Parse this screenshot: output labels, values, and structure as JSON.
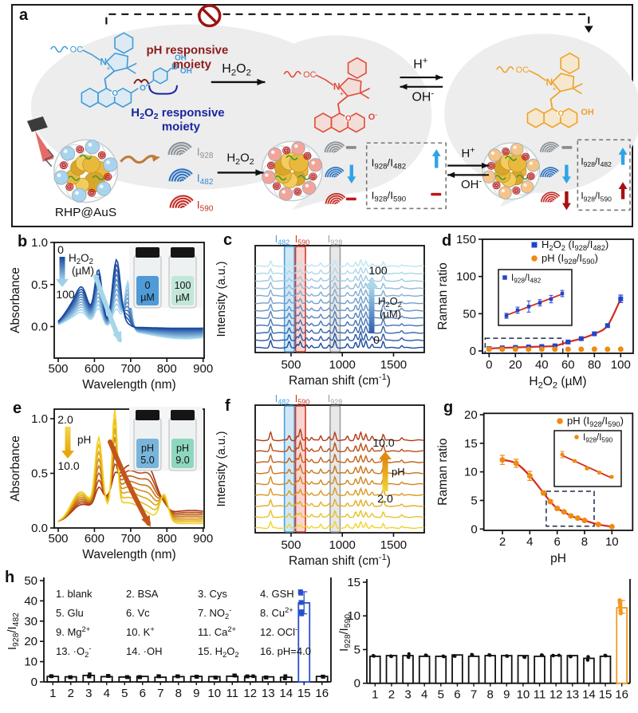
{
  "panel_letters": {
    "a": "a",
    "b": "b",
    "c": "c",
    "d": "d",
    "e": "e",
    "f": "f",
    "g": "g",
    "h": "h"
  },
  "panel_a": {
    "texts": {
      "ph_moiety_line1": "pH responsive",
      "ph_moiety_line2": "moiety",
      "h2o2_moiety_line1": "H_{2}O_{2} responsive",
      "h2o2_moiety_line2": "moiety",
      "reaction_h2o2_top": "H_{2}O_{2}",
      "reaction_h2o2_bottom": "H_{2}O_{2}",
      "h_plus": "H^{+}",
      "oh_minus": "OH^{-}",
      "oc": "OC",
      "n": "N",
      "plus": "+",
      "o": "O",
      "o_minus": "O^{-}",
      "oh": "OH",
      "b_atom": "B",
      "nanoparticle": "RHP@AuS",
      "peak_928": "I_{928}",
      "peak_482": "I_{482}",
      "peak_590": "I_{590}",
      "ratio_482": "I_{928}/I_{482}",
      "ratio_590": "I_{928}/I_{590}"
    },
    "colors": {
      "blue_dye": "#3f9bd8",
      "blue_fill": "#cfe7f7",
      "red_dye": "#e04a38",
      "red_fill": "#f8cfc9",
      "orange_dye": "#efa126",
      "orange_fill": "#fbe3b5",
      "ph_label": "#8b1a1a",
      "h2o2_label": "#18269e",
      "up_blue": "#2fa3e8",
      "up_darkred": "#a51212",
      "minus_red": "#c01818",
      "minus_gray": "#8a8a8a",
      "peak_gray": "#8c9398",
      "peak_blue": "#2f74c0",
      "peak_red": "#c43028",
      "sphere_blue": "#a8d4ee",
      "sphere_pink": "#f2a49b",
      "sphere_orange": "#f6c488",
      "no_entry": "#9c1313",
      "blob": "#ededed"
    }
  },
  "chart_data": [
    {
      "id": "b",
      "type": "line",
      "xlabel": "Wavelength (nm)",
      "ylabel": "Absorbance",
      "xlim": [
        500,
        900
      ],
      "xticks": [
        500,
        600,
        700,
        800,
        900
      ],
      "yticks": [
        0,
        0.5,
        1
      ],
      "ytick_labels": [
        "0.0",
        "0.5",
        "1.0"
      ],
      "n_curves": 11,
      "color_start": "#17479e",
      "color_end": "#aadcf0",
      "arrow_label": {
        "start": "0",
        "analyte": "H_{2}O_{2}",
        "unit": "(µM)",
        "end": "100"
      },
      "components": [
        [
          545,
          38,
          0.26,
          0.1
        ],
        [
          568,
          22,
          0.28,
          0.1
        ],
        [
          611,
          15,
          0.66,
          0.22
        ],
        [
          661,
          16,
          0.8,
          0.24
        ],
        [
          692,
          12,
          0.03,
          0.58
        ],
        [
          850,
          150,
          -0.02,
          -0.145
        ]
      ],
      "base": 0.0,
      "vials": {
        "left": {
          "line1": "0",
          "line2": "µM",
          "color": "#4f9ad8"
        },
        "right": {
          "line1": "100",
          "line2": "µM",
          "color": "#c2e7d9"
        }
      }
    },
    {
      "id": "c",
      "type": "spectra",
      "xlabel": "Raman shift (cm^{-1})",
      "ylabel": "Intensity (a.u.)",
      "xlim": [
        150,
        1800
      ],
      "xticks": [
        500,
        1000,
        1500
      ],
      "n_curves": 12,
      "color_start": "#1b4a9c",
      "color_end": "#bde4f0",
      "bands": [
        {
          "center": 482,
          "label": "I_{482}",
          "color": "#4aa0dc",
          "fill": "rgba(150,205,235,0.45)"
        },
        {
          "center": 590,
          "label": "I_{590}",
          "color": "#d03a2a",
          "fill": "rgba(245,160,150,0.45)"
        },
        {
          "center": 928,
          "label": "I_{928}",
          "color": "#9aa0a4",
          "fill": "rgba(205,205,205,0.45)"
        }
      ],
      "peaks": [
        [
          300,
          0.5
        ],
        [
          482,
          0.45
        ],
        [
          560,
          0.25
        ],
        [
          590,
          0.42
        ],
        [
          650,
          0.2
        ],
        [
          700,
          0.18
        ],
        [
          790,
          0.3
        ],
        [
          870,
          0.18
        ],
        [
          928,
          0.52
        ],
        [
          1050,
          0.26
        ],
        [
          1130,
          0.42
        ],
        [
          1180,
          0.6
        ],
        [
          1230,
          0.48
        ],
        [
          1290,
          0.26
        ],
        [
          1400,
          0.46
        ],
        [
          1580,
          0.16
        ]
      ],
      "modulate": {
        "band": 482,
        "amp_start": 1.15,
        "amp_end": 0.45
      },
      "global_start": 1.2,
      "global_end": 0.85,
      "arrow": {
        "dir": "up",
        "start_label": "0",
        "end_label": "100",
        "analyte": "H_{2}O_{2}",
        "unit": "(µM)",
        "color_start": "#2a5fae",
        "color_end": "#a8d8ea"
      }
    },
    {
      "id": "d",
      "type": "scatter",
      "xlabel": "H_{2}O_{2} (µM)",
      "ylabel": "Raman ratio",
      "xticks": [
        0,
        20,
        40,
        60,
        80,
        100
      ],
      "yticks": [
        0,
        50,
        100,
        150
      ],
      "series": [
        {
          "name": "H_{2}O_{2} (I_{928}/I_{482})",
          "marker": "square",
          "color": "#2244cc",
          "fit_color": "#d42a1a",
          "x": [
            0,
            10,
            20,
            30,
            40,
            50,
            60,
            70,
            80,
            90,
            100
          ],
          "y": [
            3.2,
            4.1,
            4.7,
            5.3,
            5.9,
            6.8,
            12,
            16.5,
            23,
            34,
            70
          ],
          "err": [
            0.6,
            0.6,
            0.7,
            0.7,
            0.8,
            0.9,
            1.3,
            1.5,
            1.6,
            2.2,
            5
          ]
        },
        {
          "name": "pH (I_{928}/I_{590})",
          "marker": "circle",
          "color": "#f08a10",
          "x": [
            0,
            10,
            20,
            30,
            40,
            50,
            60,
            70,
            80,
            90,
            100
          ],
          "y": [
            2.3,
            2.2,
            2.3,
            2.2,
            2.3,
            2.3,
            2.2,
            2.2,
            2.3,
            2.2,
            2.3
          ],
          "err": []
        }
      ],
      "dashed_box": {
        "x0": -3,
        "x1": 56,
        "y0": -3,
        "y1": 17
      },
      "inset": {
        "label": "I_{928}/I_{482}",
        "marker": "square",
        "color": "#2244cc",
        "line_color": "#d42a1a",
        "x": [
          0,
          10,
          20,
          30,
          40,
          50
        ],
        "y": [
          3.2,
          4.1,
          4.7,
          5.3,
          5.9,
          6.8
        ],
        "err": [
          0.4,
          0.5,
          0.9,
          0.5,
          0.6,
          0.5
        ]
      }
    },
    {
      "id": "e",
      "type": "line",
      "xlabel": "Wavelength (nm)",
      "ylabel": "Absorbance",
      "xlim": [
        500,
        900
      ],
      "xticks": [
        500,
        600,
        700,
        800,
        900
      ],
      "yticks": [
        0,
        0.5,
        1
      ],
      "ytick_labels": [
        "0.0",
        "0.5",
        "1.0"
      ],
      "n_curves": 8,
      "color_start": "#f2cf1d",
      "color_end": "#a93514",
      "arrow_label": {
        "start": "2.0",
        "analyte": "pH",
        "unit": "",
        "end": "10.0"
      },
      "components": [
        [
          560,
          35,
          0.24,
          0.1
        ],
        [
          612,
          14,
          0.66,
          0.16
        ],
        [
          656,
          10,
          0.88,
          0.1
        ],
        [
          700,
          55,
          0.12,
          0.42
        ],
        [
          755,
          28,
          0.02,
          0.26
        ],
        [
          792,
          16,
          0.25,
          0.04
        ],
        [
          640,
          95,
          0.1,
          0.14
        ],
        [
          870,
          120,
          0.0,
          0.12
        ]
      ],
      "base": 0.04,
      "vials": {
        "left": {
          "line1": "pH",
          "line2": "5.0",
          "color": "#79b4da"
        },
        "right": {
          "line1": "pH",
          "line2": "9.0",
          "color": "#8fd6bf"
        }
      }
    },
    {
      "id": "f",
      "type": "spectra",
      "xlabel": "Raman shift (cm^{-1})",
      "ylabel": "Intensity (a.u.)",
      "xlim": [
        150,
        1800
      ],
      "xticks": [
        500,
        1000,
        1500
      ],
      "n_curves": 9,
      "color_start": "#f0d428",
      "color_end": "#b23a16",
      "bands": [
        {
          "center": 482,
          "label": "I_{482}",
          "color": "#4aa0dc",
          "fill": "rgba(150,205,235,0.45)"
        },
        {
          "center": 590,
          "label": "I_{590}",
          "color": "#d03a2a",
          "fill": "rgba(245,160,150,0.45)"
        },
        {
          "center": 928,
          "label": "I_{928}",
          "color": "#9aa0a4",
          "fill": "rgba(205,205,205,0.45)"
        }
      ],
      "peaks": [
        [
          300,
          0.5
        ],
        [
          482,
          0.3
        ],
        [
          560,
          0.25
        ],
        [
          590,
          0.42
        ],
        [
          650,
          0.2
        ],
        [
          700,
          0.18
        ],
        [
          790,
          0.3
        ],
        [
          870,
          0.18
        ],
        [
          928,
          0.52
        ],
        [
          1050,
          0.26
        ],
        [
          1130,
          0.4
        ],
        [
          1180,
          0.5
        ],
        [
          1230,
          0.4
        ],
        [
          1290,
          0.25
        ],
        [
          1400,
          0.4
        ],
        [
          1580,
          0.15
        ]
      ],
      "modulate": {
        "band": 590,
        "amp_start": 0.5,
        "amp_end": 1.9
      },
      "global_start": 0.9,
      "global_end": 1.15,
      "arrow": {
        "dir": "up",
        "start_label": "2.0",
        "end_label": "10.0",
        "analyte": "pH",
        "unit": "",
        "color_start": "#f2d537",
        "color_end": "#e08a10"
      }
    },
    {
      "id": "g",
      "type": "scatter",
      "xlabel": "pH",
      "ylabel": "Raman ratio",
      "xticks": [
        2,
        4,
        6,
        8,
        10
      ],
      "yticks": [
        0,
        5,
        10,
        15,
        20
      ],
      "series": [
        {
          "name": "pH (I_{928}/I_{590})",
          "marker": "circle",
          "color": "#f08a10",
          "fit_color": "#d42a1a",
          "x": [
            2,
            3,
            4,
            5,
            5.5,
            6,
            6.5,
            7,
            7.5,
            8,
            9,
            10
          ],
          "y": [
            12.1,
            11.5,
            9.3,
            6.3,
            4.8,
            3.6,
            3.0,
            2.3,
            1.9,
            1.5,
            0.8,
            0.4
          ],
          "err": [
            0.8,
            0.7,
            0.8,
            0.35,
            0.3,
            0.3,
            0.25,
            0.2,
            0.2,
            0.15,
            0.12,
            0.1
          ]
        }
      ],
      "dashed_box": {
        "x0": 5.2,
        "x1": 8.7,
        "y0": 0.5,
        "y1": 6.6
      },
      "inset": {
        "label": "I_{928}/I_{590}",
        "marker": "circle",
        "color": "#f08a10",
        "line_color": "#d42a1a",
        "x": [
          6,
          6.5,
          7,
          7.5,
          8
        ],
        "y": [
          3.6,
          3.0,
          2.3,
          1.9,
          1.5
        ],
        "err": [
          0.3,
          0.1,
          0.1,
          0.1,
          0.1
        ]
      }
    },
    {
      "id": "h1",
      "type": "bar",
      "ylabel": "I_{928}/I_{482}",
      "yticks": [
        0,
        10,
        20,
        30,
        40,
        50
      ],
      "categories": [
        "1",
        "2",
        "3",
        "4",
        "5",
        "6",
        "7",
        "8",
        "9",
        "10",
        "11",
        "12",
        "13",
        "14",
        "15",
        "16"
      ],
      "values": [
        2.7,
        2.5,
        3.2,
        2.6,
        2.4,
        2.7,
        2.3,
        2.6,
        2.7,
        2.6,
        2.8,
        2.7,
        2.5,
        2.3,
        39,
        2.7
      ],
      "highlight_index": 14,
      "highlight_color": "#2b50cc",
      "marker": "square",
      "highlight_points": [
        44.5,
        43.8,
        39.2,
        34.6,
        33.6
      ],
      "legend_rows": [
        [
          "1. blank",
          "2. BSA",
          "3. Cys",
          "4. GSH"
        ],
        [
          "5. Glu",
          "6. Vc",
          "7. NO_{2}^{-}",
          "8. Cu^{2+}"
        ],
        [
          "9. Mg^{2+}",
          "10. K^{+}",
          "11. Ca^{2+}",
          "12. OCl^{-}"
        ],
        [
          "13. ·O_{2}^{-}",
          "14. ·OH",
          "15. H_{2}O_{2}",
          "16. pH=4.0"
        ]
      ]
    },
    {
      "id": "h2",
      "type": "bar",
      "ylabel": "I_{928}/I_{590}",
      "yticks": [
        0,
        5,
        10,
        15
      ],
      "categories": [
        "1",
        "2",
        "3",
        "4",
        "5",
        "6",
        "7",
        "8",
        "9",
        "10",
        "11",
        "12",
        "13",
        "14",
        "15",
        "16"
      ],
      "values": [
        4.0,
        4.1,
        4.1,
        4.0,
        4.0,
        4.2,
        4.0,
        4.1,
        4.1,
        4.1,
        4.0,
        4.1,
        4.1,
        3.7,
        4.0,
        11.2
      ],
      "highlight_index": 15,
      "highlight_color": "#f09a20",
      "marker": "circle",
      "highlight_points": [
        12.3,
        11.9,
        11.4,
        10.8,
        10.4
      ],
      "legend_rows": []
    }
  ]
}
